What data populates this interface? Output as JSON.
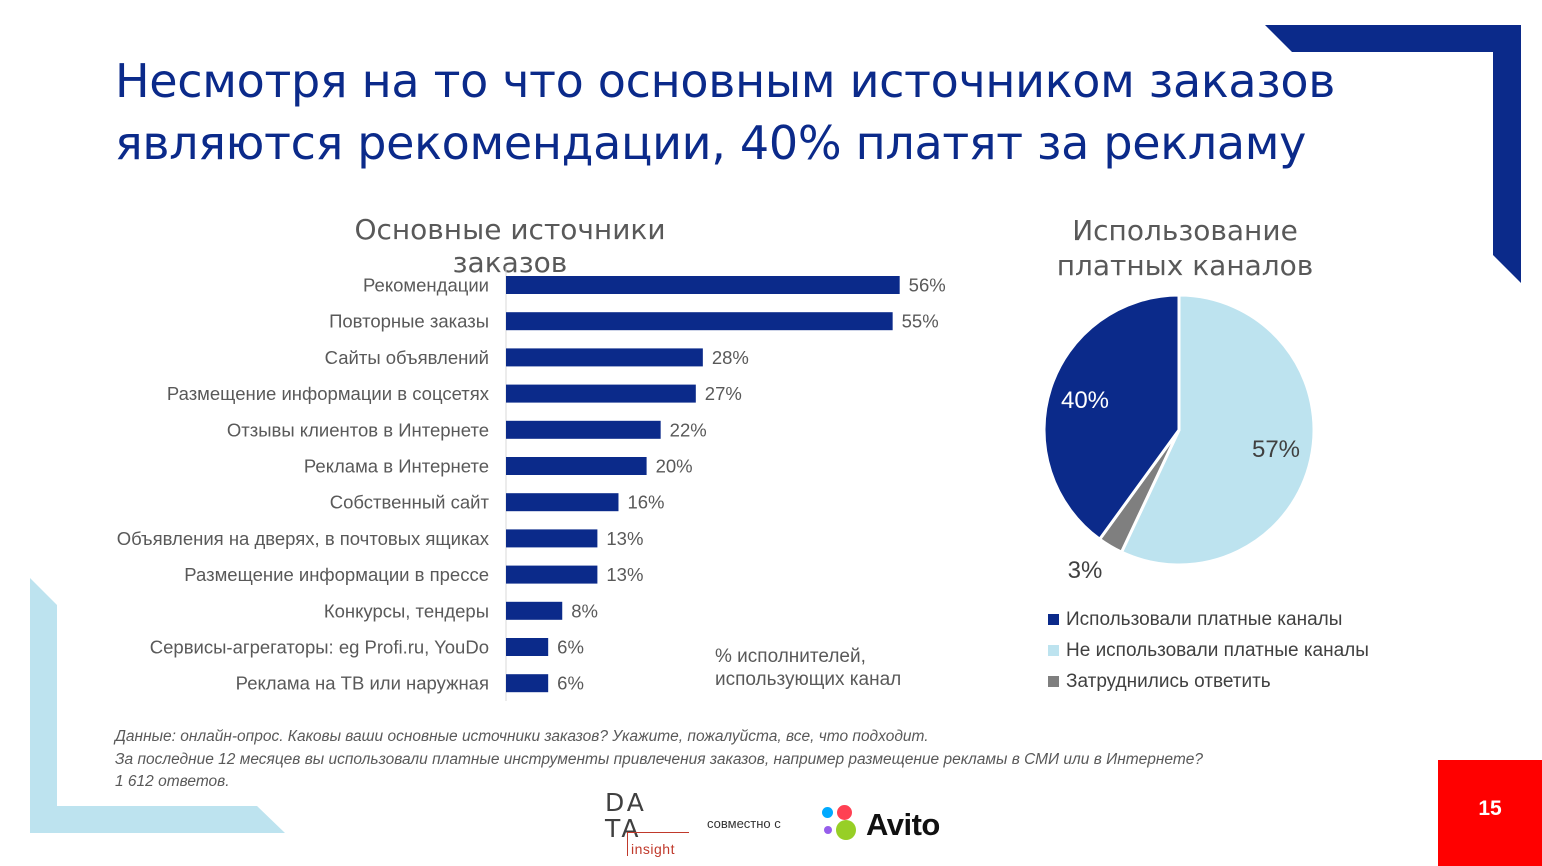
{
  "slide": {
    "title": "Несмотря на то что основным источником заказов являются рекомендации, 40% платят за рекламу",
    "page_number": "15",
    "footnote_lines": [
      "Данные: онлайн-опрос. Каковы ваши основные источники заказов? Укажите, пожалуйста, все, что подходит.",
      "За последние 12 месяцев вы использовали платные инструменты привлечения заказов, например размещение рекламы в СМИ или в Интернете?",
      "1 612 ответов."
    ],
    "logos": {
      "data_insight_line1": "DA",
      "data_insight_line2": "TA",
      "data_insight_sub": "insight",
      "together_text": "совместно с",
      "avito_text": "Avito"
    },
    "colors": {
      "brand_dark_blue": "#0b2a8a",
      "light_blue": "#bde3ef",
      "grey": "#7f7f7f",
      "red": "#ff0000"
    }
  },
  "chart_data": [
    {
      "type": "bar",
      "orientation": "horizontal",
      "title": "Основные источники заказов",
      "categories": [
        "Рекомендации",
        "Повторные заказы",
        "Сайты объявлений",
        "Размещение информации в соцсетях",
        "Отзывы клиентов в Интернете",
        "Реклама в Интернете",
        "Собственный сайт",
        "Объявления на дверях, в почтовых ящиках",
        "Размещение информации в прессе",
        "Конкурсы, тендеры",
        "Сервисы-агрегаторы: eg Profi.ru, YouDo",
        "Реклама на ТВ или наружная"
      ],
      "values": [
        56,
        55,
        28,
        27,
        22,
        20,
        16,
        13,
        13,
        8,
        6,
        6
      ],
      "labels": [
        "56%",
        "55%",
        "28%",
        "27%",
        "22%",
        "20%",
        "16%",
        "13%",
        "13%",
        "8%",
        "6%",
        "6%"
      ],
      "unit": "%",
      "note": "% исполнителей, использующих канал",
      "color": "#0b2a8a"
    },
    {
      "type": "pie",
      "title": "Использование платных каналов",
      "slices": [
        {
          "name": "Использовали платные каналы",
          "value": 40,
          "label": "40%",
          "color": "#0b2a8a"
        },
        {
          "name": "Не использовали платные каналы",
          "value": 57,
          "label": "57%",
          "color": "#bde3ef"
        },
        {
          "name": "Затруднились ответить",
          "value": 3,
          "label": "3%",
          "color": "#7f7f7f"
        }
      ],
      "legend_position": "bottom"
    }
  ]
}
